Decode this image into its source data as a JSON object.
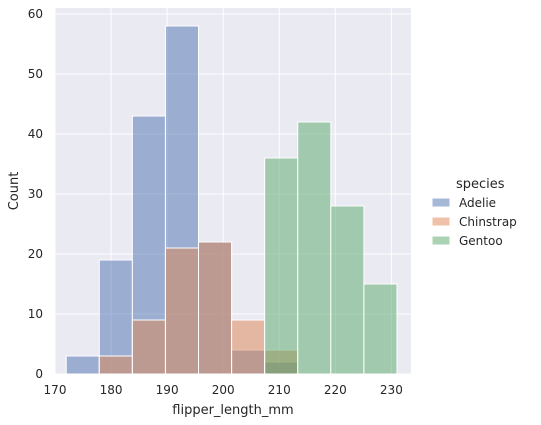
{
  "chart_data": {
    "type": "bar",
    "subtype": "histogram",
    "xlabel": "flipper_length_mm",
    "ylabel": "Count",
    "xlim": [
      170,
      233.5
    ],
    "ylim": [
      0,
      61
    ],
    "xticks": [
      170,
      180,
      190,
      200,
      210,
      220,
      230
    ],
    "yticks": [
      0,
      10,
      20,
      30,
      40,
      50,
      60
    ],
    "bin_edges": [
      172,
      177.9,
      183.8,
      189.7,
      195.6,
      201.5,
      207.4,
      213.3,
      219.2,
      225.1,
      231
    ],
    "grid": true,
    "legend_placement": "right",
    "legend_title": "species",
    "series": [
      {
        "name": "Adelie",
        "color": "#4c72b0",
        "values": [
          3,
          19,
          43,
          58,
          22,
          4,
          2,
          0,
          0,
          0
        ]
      },
      {
        "name": "Chinstrap",
        "color": "#dd8452",
        "values": [
          0,
          3,
          9,
          21,
          22,
          9,
          4,
          0,
          0,
          0
        ]
      },
      {
        "name": "Gentoo",
        "color": "#55a868",
        "values": [
          0,
          0,
          0,
          0,
          0,
          0,
          36,
          42,
          28,
          15
        ]
      }
    ],
    "style": {
      "background": "#eaeaf2",
      "gridline": "#ffffff",
      "bar_alpha": 0.5,
      "bar_edge": "#ffffff"
    }
  }
}
